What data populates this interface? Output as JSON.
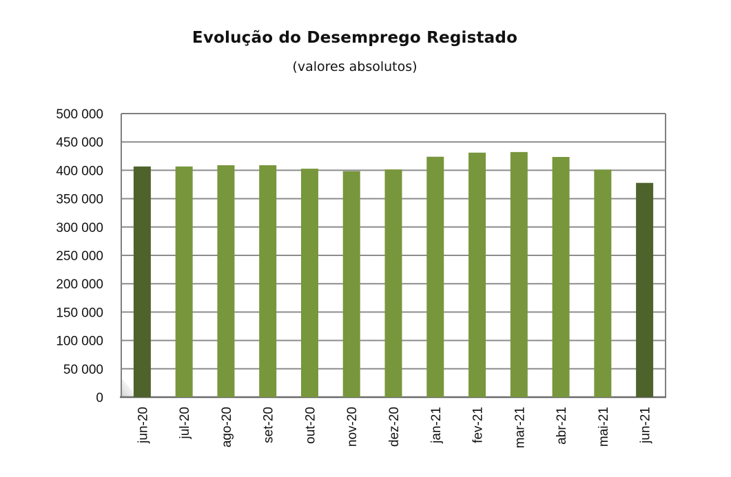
{
  "chart_data": {
    "type": "bar",
    "title": "Evolução do Desemprego Registado",
    "subtitle": "(valores absolutos)",
    "xlabel": "",
    "ylabel": "",
    "ylim": [
      0,
      500000
    ],
    "yticks": [
      0,
      50000,
      100000,
      150000,
      200000,
      250000,
      300000,
      350000,
      400000,
      450000,
      500000
    ],
    "ytick_labels": [
      "0",
      "50 000",
      "100 000",
      "150 000",
      "200 000",
      "250 000",
      "300 000",
      "350 000",
      "400 000",
      "450 000",
      "500 000"
    ],
    "grid": true,
    "categories": [
      "jun-20",
      "jul-20",
      "ago-20",
      "set-20",
      "out-20",
      "nov-20",
      "dez-20",
      "jan-21",
      "fev-21",
      "mar-21",
      "abr-21",
      "mai-21",
      "jun-21"
    ],
    "values": [
      406700,
      406700,
      408900,
      408900,
      402800,
      398400,
      401500,
      423900,
      431100,
      432200,
      423500,
      401300,
      377800
    ],
    "colors": {
      "default": "#78963c",
      "highlight": "#4e632c",
      "grid": "#8c8c8c",
      "plot_border": "#7f7f7f"
    },
    "highlighted": [
      "jun-20",
      "jun-21"
    ]
  }
}
